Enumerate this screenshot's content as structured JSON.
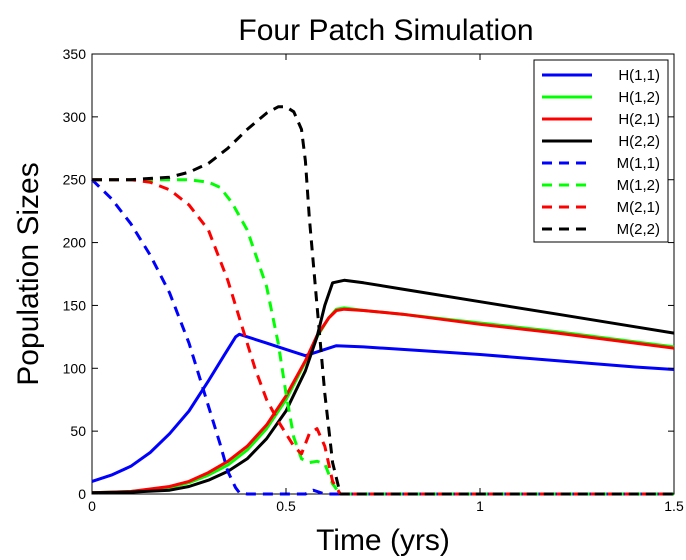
{
  "chart_data": {
    "type": "line",
    "title": "Four Patch Simulation",
    "xlabel": "Time (yrs)",
    "ylabel": "Population Sizes",
    "xlim": [
      0,
      1.5
    ],
    "ylim": [
      0,
      350
    ],
    "xticks": [
      0,
      0.5,
      1,
      1.5
    ],
    "xtick_labels": [
      "0",
      "0.5",
      "1",
      "1.5"
    ],
    "yticks": [
      0,
      50,
      100,
      150,
      200,
      250,
      300,
      350
    ],
    "ytick_labels": [
      "0",
      "50",
      "100",
      "150",
      "200",
      "250",
      "300",
      "350"
    ],
    "grid": false,
    "legend_position": "top-right",
    "series": [
      {
        "name": "H(1,1)",
        "color": "#0000ff",
        "dash": "solid",
        "x": [
          0,
          0.05,
          0.1,
          0.15,
          0.2,
          0.25,
          0.3,
          0.34,
          0.37,
          0.38,
          0.45,
          0.5,
          0.55,
          0.6,
          0.63,
          0.7,
          0.8,
          1.0,
          1.2,
          1.4,
          1.5
        ],
        "y": [
          10,
          15,
          22,
          33,
          48,
          66,
          90,
          110,
          125,
          127,
          120,
          115,
          110,
          115,
          118,
          117,
          115,
          111,
          106,
          101,
          99
        ]
      },
      {
        "name": "H(1,2)",
        "color": "#00ff00",
        "dash": "solid",
        "x": [
          0,
          0.1,
          0.2,
          0.25,
          0.3,
          0.35,
          0.4,
          0.45,
          0.5,
          0.55,
          0.58,
          0.61,
          0.63,
          0.65,
          0.7,
          0.8,
          1.0,
          1.2,
          1.4,
          1.5
        ],
        "y": [
          1,
          2,
          5,
          9,
          15,
          23,
          35,
          52,
          75,
          105,
          125,
          140,
          147,
          148,
          146,
          143,
          136,
          129,
          121,
          117
        ]
      },
      {
        "name": "H(2,1)",
        "color": "#ff0000",
        "dash": "solid",
        "x": [
          0,
          0.1,
          0.2,
          0.25,
          0.3,
          0.35,
          0.4,
          0.45,
          0.5,
          0.55,
          0.58,
          0.61,
          0.63,
          0.65,
          0.7,
          0.8,
          1.0,
          1.2,
          1.4,
          1.5
        ],
        "y": [
          1,
          2,
          6,
          10,
          17,
          26,
          38,
          55,
          78,
          106,
          126,
          140,
          146,
          147,
          146,
          143,
          135,
          128,
          120,
          116
        ]
      },
      {
        "name": "H(2,2)",
        "color": "#000000",
        "dash": "solid",
        "x": [
          0,
          0.1,
          0.2,
          0.25,
          0.3,
          0.35,
          0.4,
          0.45,
          0.5,
          0.55,
          0.58,
          0.6,
          0.62,
          0.65,
          0.7,
          0.8,
          1.0,
          1.2,
          1.4,
          1.5
        ],
        "y": [
          1,
          1.5,
          3,
          6,
          11,
          18,
          28,
          44,
          66,
          98,
          125,
          150,
          168,
          170,
          168,
          163,
          153,
          143,
          133,
          128
        ]
      },
      {
        "name": "M(1,1)",
        "color": "#0000ff",
        "dash": "dashed",
        "x": [
          0,
          0.05,
          0.1,
          0.15,
          0.2,
          0.25,
          0.3,
          0.33,
          0.35,
          0.37,
          0.38,
          0.4,
          0.5,
          0.55,
          0.57,
          0.6,
          0.65,
          1.5
        ],
        "y": [
          250,
          235,
          215,
          190,
          160,
          120,
          70,
          40,
          18,
          5,
          1,
          0,
          0,
          0,
          3,
          0,
          0,
          0
        ]
      },
      {
        "name": "M(1,2)",
        "color": "#00ff00",
        "dash": "dashed",
        "x": [
          0,
          0.1,
          0.2,
          0.25,
          0.3,
          0.33,
          0.36,
          0.4,
          0.45,
          0.48,
          0.5,
          0.52,
          0.54,
          0.56,
          0.58,
          0.6,
          0.62,
          0.64,
          1.5
        ],
        "y": [
          250,
          250,
          250,
          250,
          248,
          244,
          232,
          210,
          165,
          120,
          80,
          45,
          28,
          25,
          26,
          24,
          8,
          0,
          0
        ]
      },
      {
        "name": "M(2,1)",
        "color": "#ff0000",
        "dash": "dashed",
        "x": [
          0,
          0.1,
          0.15,
          0.2,
          0.25,
          0.3,
          0.35,
          0.38,
          0.42,
          0.45,
          0.48,
          0.5,
          0.52,
          0.54,
          0.56,
          0.58,
          0.6,
          0.62,
          0.64,
          1.5
        ],
        "y": [
          250,
          250,
          248,
          242,
          230,
          210,
          170,
          140,
          100,
          75,
          58,
          48,
          38,
          32,
          48,
          52,
          38,
          10,
          0,
          0
        ]
      },
      {
        "name": "M(2,2)",
        "color": "#000000",
        "dash": "dashed",
        "x": [
          0,
          0.1,
          0.2,
          0.25,
          0.3,
          0.35,
          0.4,
          0.45,
          0.48,
          0.5,
          0.52,
          0.54,
          0.55,
          0.56,
          0.58,
          0.6,
          0.62,
          0.64,
          1.5
        ],
        "y": [
          250,
          250,
          252,
          256,
          263,
          275,
          290,
          303,
          308,
          308,
          304,
          290,
          265,
          220,
          150,
          80,
          25,
          0,
          0
        ]
      }
    ]
  }
}
